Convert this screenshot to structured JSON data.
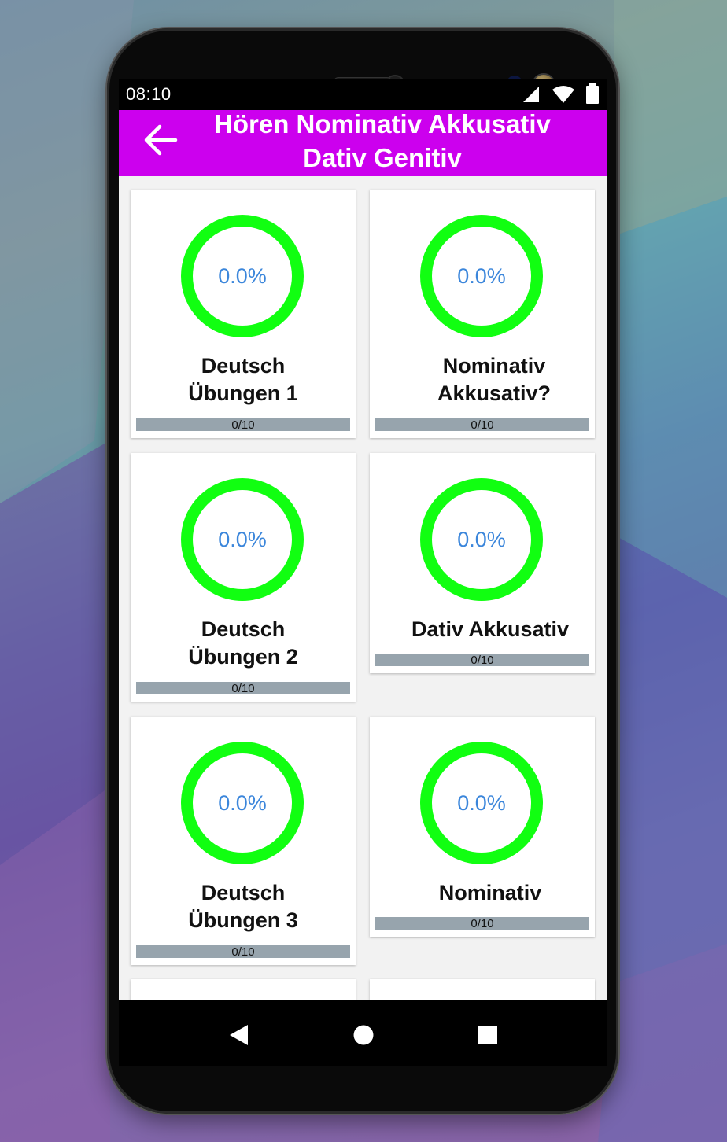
{
  "status_bar": {
    "time": "08:10"
  },
  "app_bar": {
    "title": "Hören Nominativ Akkusativ Dativ Genitiv"
  },
  "cards": [
    {
      "percent": "0.0%",
      "title": "Deutsch Übungen 1",
      "progress": "0/10",
      "fraction": 0
    },
    {
      "percent": "0.0%",
      "title": "Nominativ Akkusativ?",
      "progress": "0/10",
      "fraction": 0
    },
    {
      "percent": "0.0%",
      "title": "Deutsch Übungen 2",
      "progress": "0/10",
      "fraction": 0
    },
    {
      "percent": "0.0%",
      "title": "Dativ Akkusativ",
      "progress": "0/10",
      "fraction": 0
    },
    {
      "percent": "0.0%",
      "title": "Deutsch Übungen 3",
      "progress": "0/10",
      "fraction": 0
    },
    {
      "percent": "0.0%",
      "title": "Nominativ",
      "progress": "0/10",
      "fraction": 0
    }
  ],
  "icons": {
    "back": "arrow-left-icon",
    "signal": "cell-signal-icon",
    "wifi": "wifi-icon",
    "battery": "battery-icon",
    "nav_back": "triangle-back-icon",
    "nav_home": "circle-home-icon",
    "nav_recents": "square-recents-icon"
  },
  "colors": {
    "app_bar": "#cc00ee",
    "ring": "#11ff11",
    "percent_text": "#3b86db",
    "progress_track": "#97a4ad"
  }
}
